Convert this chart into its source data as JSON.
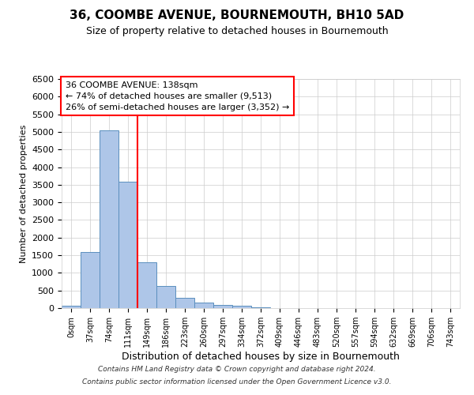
{
  "title1": "36, COOMBE AVENUE, BOURNEMOUTH, BH10 5AD",
  "title2": "Size of property relative to detached houses in Bournemouth",
  "xlabel": "Distribution of detached houses by size in Bournemouth",
  "ylabel": "Number of detached properties",
  "bar_labels": [
    "0sqm",
    "37sqm",
    "74sqm",
    "111sqm",
    "149sqm",
    "186sqm",
    "223sqm",
    "260sqm",
    "297sqm",
    "334sqm",
    "372sqm",
    "409sqm",
    "446sqm",
    "483sqm",
    "520sqm",
    "557sqm",
    "594sqm",
    "632sqm",
    "669sqm",
    "706sqm",
    "743sqm"
  ],
  "bar_values": [
    60,
    1600,
    5050,
    3580,
    1300,
    620,
    290,
    150,
    100,
    60,
    25,
    5,
    5,
    5,
    3,
    2,
    2,
    1,
    1,
    1,
    1
  ],
  "bar_color": "#aec6e8",
  "bar_edge_color": "#5b8fbe",
  "vline_color": "red",
  "vline_pos": 3.5,
  "ylim": [
    0,
    6500
  ],
  "annotation_text": "36 COOMBE AVENUE: 138sqm\n← 74% of detached houses are smaller (9,513)\n26% of semi-detached houses are larger (3,352) →",
  "annotation_box_color": "white",
  "annotation_box_edge": "red",
  "footer1": "Contains HM Land Registry data © Crown copyright and database right 2024.",
  "footer2": "Contains public sector information licensed under the Open Government Licence v3.0.",
  "bg_color": "white",
  "grid_color": "#cccccc",
  "title1_fontsize": 11,
  "title2_fontsize": 9,
  "ylabel_fontsize": 8,
  "xlabel_fontsize": 9,
  "tick_fontsize": 7,
  "annot_fontsize": 8
}
